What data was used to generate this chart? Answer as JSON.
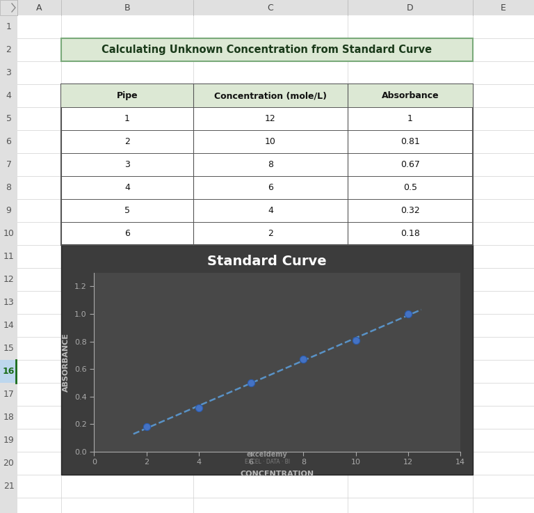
{
  "title_text": "Calculating Unknown Concentration from Standard Curve",
  "title_bg": "#dce8d4",
  "title_border": "#7aaa7a",
  "table_headers": [
    "Pipe",
    "Concentration (mole/L)",
    "Absorbance"
  ],
  "table_data": [
    [
      "1",
      "12",
      "1"
    ],
    [
      "2",
      "10",
      "0.81"
    ],
    [
      "3",
      "8",
      "0.67"
    ],
    [
      "4",
      "6",
      "0.5"
    ],
    [
      "5",
      "4",
      "0.32"
    ],
    [
      "6",
      "2",
      "0.18"
    ]
  ],
  "header_bg": "#dce8d4",
  "chart_bg_outer": "#3c3c3c",
  "chart_bg_inner": "#484848",
  "chart_title": "Standard Curve",
  "chart_title_color": "#ffffff",
  "x_data": [
    2,
    4,
    6,
    8,
    10,
    12
  ],
  "y_data": [
    0.18,
    0.32,
    0.5,
    0.67,
    0.81,
    1.0
  ],
  "point_color": "#4472c4",
  "line_color": "#5b9bd5",
  "x_label": "CONCENTRATION",
  "y_label": "ABSORBANCE",
  "axis_label_color": "#bbbbbb",
  "tick_color": "#aaaaaa",
  "xlim": [
    0,
    14
  ],
  "ylim": [
    0,
    1.3
  ],
  "x_ticks": [
    0,
    2,
    4,
    6,
    8,
    10,
    12,
    14
  ],
  "y_ticks": [
    0,
    0.2,
    0.4,
    0.6,
    0.8,
    1.0,
    1.2
  ],
  "col_header_bg": "#e0e0e0",
  "row_header_bg": "#e0e0e0",
  "sheet_bg": "#ffffff",
  "outer_bg": "#c8c8c8",
  "grid_line_color": "#d0d0d0",
  "row_number_color": "#555555",
  "col_header_border": "#b0b0b0",
  "selected_row_bg": "#bdd7ee",
  "selected_row_num_color": "#1a6c1a"
}
